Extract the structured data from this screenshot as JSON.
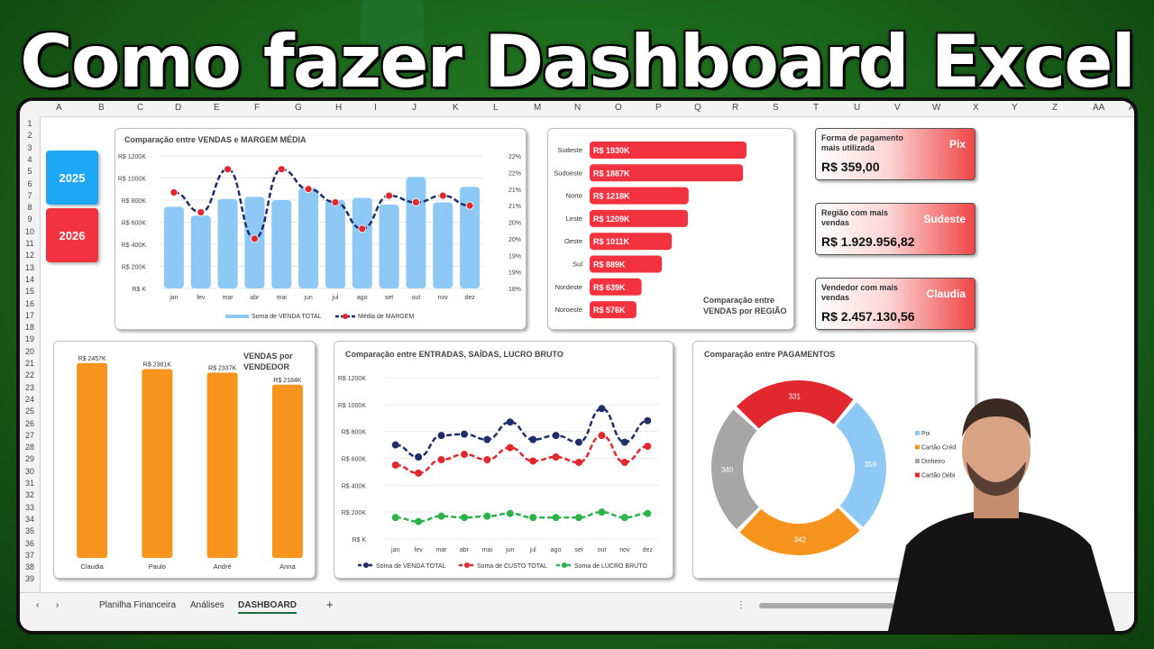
{
  "headline": "Como fazer Dashboard Excel",
  "columns": [
    "A",
    "B",
    "C",
    "D",
    "E",
    "F",
    "G",
    "H",
    "I",
    "J",
    "K",
    "L",
    "M",
    "N",
    "O",
    "P",
    "Q",
    "R",
    "S",
    "T",
    "U",
    "V",
    "W",
    "X",
    "Y",
    "Z",
    "AA",
    "A"
  ],
  "rows": [
    "1",
    "2",
    "3",
    "4",
    "5",
    "6",
    "7",
    "8",
    "9",
    "10",
    "11",
    "12",
    "13",
    "14",
    "15",
    "16",
    "17",
    "18",
    "19",
    "20",
    "21",
    "22",
    "23",
    "24",
    "25",
    "26",
    "27",
    "28",
    "29",
    "30",
    "31",
    "32",
    "33",
    "34",
    "35",
    "36",
    "37",
    "38",
    "39"
  ],
  "year_filters": [
    {
      "label": "2025",
      "color": "#1ea7f5"
    },
    {
      "label": "2026",
      "color": "#f2323f"
    }
  ],
  "kpis": [
    {
      "label": "Forma de pagamento mais utilizada",
      "highlight": "Pix",
      "value": "R$ 359,00"
    },
    {
      "label": "Região com mais vendas",
      "highlight": "Sudeste",
      "value": "R$ 1.929.956,82"
    },
    {
      "label": "Vendedor com mais vendas",
      "highlight": "Claudia",
      "value": "R$ 2.457.130,56"
    }
  ],
  "sheet_tabs": [
    "Planilha Financeira",
    "Análises",
    "DASHBOARD"
  ],
  "active_tab": "DASHBOARD",
  "chart_data": [
    {
      "type": "bar+line",
      "title": "Comparação entre VENDAS e MARGEM MÉDIA",
      "categories": [
        "jan",
        "fev",
        "mar",
        "abr",
        "mai",
        "jun",
        "jul",
        "ago",
        "set",
        "out",
        "nov",
        "dez"
      ],
      "series": [
        {
          "name": "Soma de VENDA TOTAL",
          "axis": "left",
          "type": "bar",
          "color": "#8ec9f5",
          "values": [
            740,
            660,
            810,
            830,
            800,
            910,
            800,
            820,
            760,
            1010,
            780,
            920
          ]
        },
        {
          "name": "Média de MARGEM",
          "axis": "right",
          "type": "line",
          "color": "#1f2e6b",
          "values": [
            20.9,
            20.3,
            21.6,
            19.5,
            21.6,
            21.0,
            20.6,
            19.8,
            20.8,
            20.6,
            20.8,
            20.5
          ]
        }
      ],
      "yticks_left": [
        "R$ K",
        "R$ 200K",
        "R$ 400K",
        "R$ 600K",
        "R$ 800K",
        "R$ 1000K",
        "R$ 1200K"
      ],
      "ylim_left": [
        0,
        1200
      ],
      "yticks_right": [
        "18%",
        "19%",
        "19%",
        "20%",
        "20%",
        "21%",
        "21%",
        "22%",
        "22%"
      ],
      "ylim_right": [
        18,
        22
      ]
    },
    {
      "type": "bar",
      "orientation": "horizontal",
      "title": "Comparação entre VENDAS por REGIÃO",
      "categories": [
        "Sudeste",
        "Sudoeste",
        "Norte",
        "Leste",
        "Oeste",
        "Sul",
        "Nordeste",
        "Noroeste"
      ],
      "values": [
        1930,
        1887,
        1218,
        1209,
        1011,
        889,
        639,
        576
      ],
      "labels": [
        "R$ 1930K",
        "R$ 1887K",
        "R$ 1218K",
        "R$ 1209K",
        "R$ 1011K",
        "R$ 889K",
        "R$ 639K",
        "R$ 576K"
      ],
      "color": "#f2323f"
    },
    {
      "type": "bar",
      "title": "VENDAS por VENDEDOR",
      "categories": [
        "Claudia",
        "Paulo",
        "André",
        "Anna"
      ],
      "values": [
        2457,
        2381,
        2337,
        2184
      ],
      "labels": [
        "R$ 2457K",
        "R$ 2381K",
        "R$ 2337K",
        "R$ 2184K"
      ],
      "color": "#f7941d"
    },
    {
      "type": "line",
      "title": "Comparação entre ENTRADAS, SAÍDAS, LUCRO BRUTO",
      "categories": [
        "jan",
        "fev",
        "mar",
        "abr",
        "mai",
        "jun",
        "jul",
        "ago",
        "set",
        "out",
        "nov",
        "dez"
      ],
      "series": [
        {
          "name": "Soma de VENDA TOTAL",
          "color": "#1f2e6b",
          "values": [
            700,
            610,
            770,
            780,
            740,
            870,
            740,
            770,
            720,
            970,
            720,
            880
          ]
        },
        {
          "name": "Soma de CUSTO TOTAL",
          "color": "#e0282e",
          "values": [
            550,
            490,
            590,
            630,
            590,
            680,
            580,
            610,
            570,
            770,
            570,
            690
          ]
        },
        {
          "name": "Soma de LUCRO BRUTO",
          "color": "#2bb34a",
          "values": [
            160,
            130,
            170,
            160,
            170,
            190,
            160,
            160,
            160,
            200,
            160,
            190
          ]
        }
      ],
      "yticks": [
        "R$ K",
        "R$ 200K",
        "R$ 400K",
        "R$ 600K",
        "R$ 800K",
        "R$ 1000K",
        "R$ 1200K"
      ],
      "ylim": [
        0,
        1200
      ]
    },
    {
      "type": "pie",
      "donut": true,
      "title": "Comparação entre PAGAMENTOS",
      "labels": [
        "Pix",
        "Cartão Crédito",
        "Dinheiro",
        "Cartão Débito"
      ],
      "legend": [
        "Pix",
        "Cartão Créd",
        "Dinheiro",
        "Cartão Débi"
      ],
      "values": [
        359,
        342,
        340,
        331
      ],
      "colors": [
        "#8ec9f5",
        "#f7941d",
        "#a6a6a6",
        "#e0282e"
      ]
    }
  ]
}
